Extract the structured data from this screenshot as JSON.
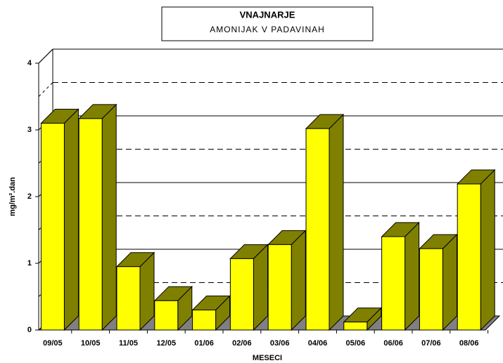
{
  "chart_data": {
    "type": "bar3d",
    "title": "VNAJNARJE",
    "subtitle": "AMONIJAK V PADAVINAH",
    "x_label": "MESECI",
    "y_label": "mg/m².dan",
    "categories": [
      "09/05",
      "10/05",
      "11/05",
      "12/05",
      "01/06",
      "02/06",
      "03/06",
      "04/06",
      "05/06",
      "06/06",
      "07/06",
      "08/06"
    ],
    "values": [
      3.1,
      3.17,
      0.95,
      0.44,
      0.3,
      1.07,
      1.28,
      3.02,
      0.12,
      1.4,
      1.22,
      2.19
    ],
    "color": "#ffff00",
    "side_color": "#808000",
    "ylim": [
      0,
      4
    ],
    "yticks": [
      0,
      1,
      2,
      3,
      4
    ],
    "minor_grid": [
      0.5,
      1.5,
      2.5,
      3.5
    ],
    "grid": true
  }
}
